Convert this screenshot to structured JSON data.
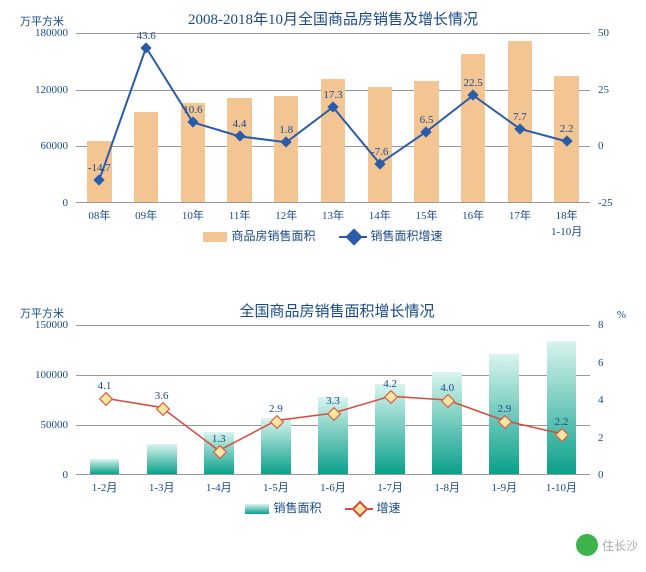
{
  "chart1": {
    "type": "bar+line",
    "title": "2008-2018年10月全国商品房销售及增长情况",
    "left_axis_label": "万平方米",
    "right_axis_label": "",
    "ylim": [
      0,
      180000
    ],
    "ytick_step": 60000,
    "ylim_r": [
      -25,
      50
    ],
    "ytick_r": [
      -25,
      0,
      25,
      50
    ],
    "categories": [
      "08年",
      "09年",
      "10年",
      "11年",
      "12年",
      "13年",
      "14年",
      "15年",
      "16年",
      "17年",
      "18年\n1-10月"
    ],
    "bars": [
      65000,
      95000,
      105000,
      110000,
      112000,
      130000,
      122000,
      128000,
      157000,
      170000,
      133000
    ],
    "bar_color": "#f2c593",
    "bar_width": 0.52,
    "line": [
      -14.7,
      43.6,
      10.6,
      4.4,
      1.8,
      17.3,
      -7.6,
      6.5,
      22.5,
      7.7,
      2.2
    ],
    "line_color": "#2a5caa",
    "line_width": 2,
    "marker": "diamond",
    "marker_fill": "#2a5caa",
    "legend": {
      "bar": "商品房销售面积",
      "line": "销售面积增速"
    },
    "data_labels": [
      "-14.7",
      "43.6",
      "10.6",
      "4.4",
      "1.8",
      "17.3",
      "-7.6",
      "6.5",
      "22.5",
      "7.7",
      "2.2"
    ]
  },
  "chart2": {
    "type": "bar+line",
    "title": "全国商品房销售面积增长情况",
    "left_axis_label": "万平方米",
    "right_axis_label": "%",
    "ylim": [
      0,
      150000
    ],
    "ytick_step": 50000,
    "ylim_r": [
      0,
      8
    ],
    "ytick_step_r": 2,
    "categories": [
      "1-2月",
      "1-3月",
      "1-4月",
      "1-5月",
      "1-6月",
      "1-7月",
      "1-8月",
      "1-9月",
      "1-10月"
    ],
    "bars": [
      15000,
      30000,
      42000,
      56000,
      77000,
      90000,
      102000,
      120000,
      133000
    ],
    "bar_gradient_top": "#d9f4ef",
    "bar_gradient_bottom": "#0aa08a",
    "bar_width": 0.52,
    "line": [
      4.1,
      3.6,
      1.3,
      2.9,
      3.3,
      4.2,
      4.0,
      2.9,
      2.2
    ],
    "line_color": "#d94a3a",
    "line_width": 1.5,
    "marker": "diamond",
    "marker_fill": "#f7e6a0",
    "marker_border": "#d94a3a",
    "legend": {
      "bar": "销售面积",
      "line": "增速"
    },
    "data_labels": [
      "4.1",
      "3.6",
      "1.3",
      "2.9",
      "3.3",
      "4.2",
      "4.0",
      "2.9",
      "2.2"
    ]
  },
  "watermark": "住长沙"
}
